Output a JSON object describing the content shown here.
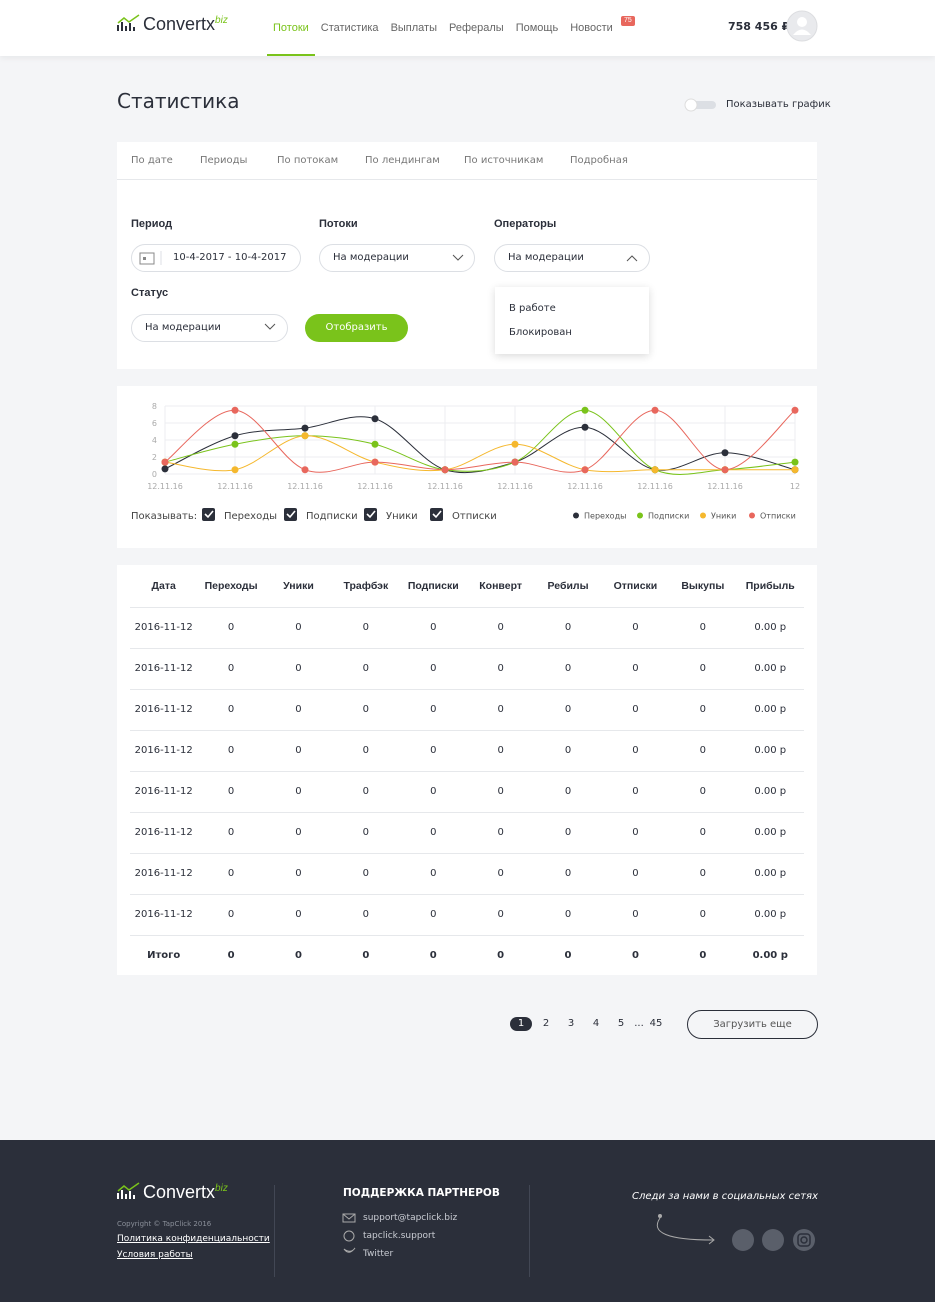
{
  "header": {
    "logo": "Convertx",
    "logo_suffix": "biz",
    "nav": [
      "Потоки",
      "Статистика",
      "Выплаты",
      "Рефералы",
      "Помощь",
      "Новости"
    ],
    "badge": "75",
    "balance": "758 456 ₽"
  },
  "page": {
    "title": "Статистика",
    "toggle_label": "Показывать график"
  },
  "tabs": [
    "По дате",
    "Периоды",
    "По потокам",
    "По лендингам",
    "По источникам",
    "Подробная"
  ],
  "filters": {
    "period_label": "Период",
    "period_value": "10-4-2017 - 10-4-2017",
    "streams_label": "Потоки",
    "streams_value": "На модерации",
    "operators_label": "Операторы",
    "operators_value": "На модерации",
    "operators_options": [
      "В работе",
      "Блокирован"
    ],
    "status_label": "Статус",
    "status_value": "На модерации",
    "submit": "Отобразить"
  },
  "chart_data": {
    "type": "line",
    "categories": [
      "12.11.16",
      "12.11.16",
      "12.11.16",
      "12.11.16",
      "12.11.16",
      "12.11.16",
      "12.11.16",
      "12.11.16",
      "12.11.16",
      "12"
    ],
    "series": [
      {
        "name": "Переходы",
        "color": "#2b2f3a",
        "values": [
          0.6,
          4.5,
          5.4,
          6.5,
          0.5,
          1.4,
          5.5,
          0.5,
          2.5,
          0.5
        ]
      },
      {
        "name": "Подписки",
        "color": "#7ac31b",
        "values": [
          1.4,
          3.5,
          4.5,
          3.5,
          0.5,
          1.4,
          7.5,
          0.5,
          0.5,
          1.4
        ]
      },
      {
        "name": "Уники",
        "color": "#f5b82e",
        "values": [
          1.4,
          0.5,
          4.5,
          1.4,
          0.5,
          3.5,
          0.5,
          0.5,
          0.5,
          0.5
        ]
      },
      {
        "name": "Отписки",
        "color": "#e8675d",
        "values": [
          1.4,
          7.5,
          0.5,
          1.4,
          0.5,
          1.4,
          0.5,
          7.5,
          0.5,
          7.5
        ]
      }
    ],
    "ylim": [
      0,
      8
    ],
    "yticks": [
      0,
      2,
      4,
      6,
      8
    ],
    "grid": true,
    "show_label": "Показывать:"
  },
  "table": {
    "columns": [
      "Дата",
      "Переходы",
      "Уники",
      "Трафбэк",
      "Подписки",
      "Конверт",
      "Ребилы",
      "Отписки",
      "Выкупы",
      "Прибыль"
    ],
    "rows": [
      [
        "2016-11-12",
        0,
        0,
        0,
        0,
        0,
        0,
        0,
        0,
        "0.00 р"
      ],
      [
        "2016-11-12",
        0,
        0,
        0,
        0,
        0,
        0,
        0,
        0,
        "0.00 р"
      ],
      [
        "2016-11-12",
        0,
        0,
        0,
        0,
        0,
        0,
        0,
        0,
        "0.00 р"
      ],
      [
        "2016-11-12",
        0,
        0,
        0,
        0,
        0,
        0,
        0,
        0,
        "0.00 р"
      ],
      [
        "2016-11-12",
        0,
        0,
        0,
        0,
        0,
        0,
        0,
        0,
        "0.00 р"
      ],
      [
        "2016-11-12",
        0,
        0,
        0,
        0,
        0,
        0,
        0,
        0,
        "0.00 р"
      ],
      [
        "2016-11-12",
        0,
        0,
        0,
        0,
        0,
        0,
        0,
        0,
        "0.00 р"
      ],
      [
        "2016-11-12",
        0,
        0,
        0,
        0,
        0,
        0,
        0,
        0,
        "0.00 р"
      ]
    ],
    "total": [
      "Итого",
      0,
      0,
      0,
      0,
      0,
      0,
      0,
      0,
      "0.00 р"
    ]
  },
  "pagination": {
    "pages": [
      1,
      2,
      3,
      4,
      5,
      "...",
      45
    ],
    "load_more": "Загрузить еще"
  },
  "footer": {
    "logo": "Convertx",
    "logo_suffix": "biz",
    "copyright": "Copyright © TapClick 2016",
    "links": [
      "Политика конфиденциальности",
      "Условия работы"
    ],
    "support_title": "ПОДДЕРЖКА ПАРТНЕРОВ",
    "contacts": [
      "support@tapclick.biz",
      "tapclick.support",
      "Twitter"
    ],
    "social_title": "Следи за нами в социальных сетях"
  }
}
